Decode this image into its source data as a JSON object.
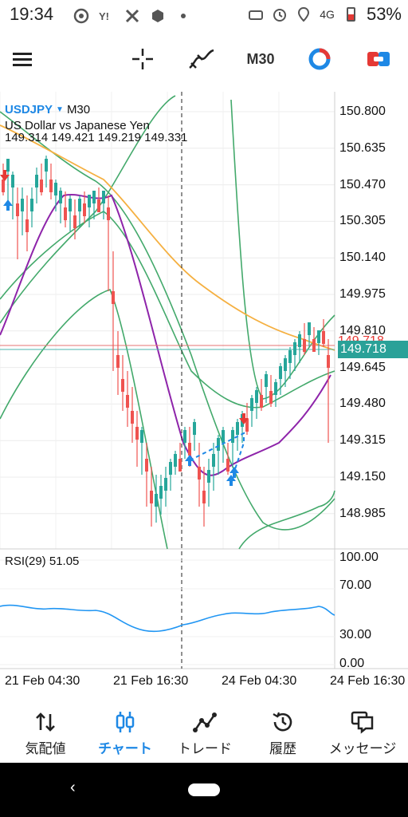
{
  "status_bar": {
    "time": "19:34",
    "network": "4G",
    "battery": "53%",
    "left_icons": [
      "chrome-icon",
      "yahoo-icon",
      "tools-icon",
      "box-icon",
      "dot-icon"
    ],
    "right_icons": [
      "cast-icon",
      "alarm-icon",
      "location-icon",
      "signal-icon",
      "battery-icon"
    ]
  },
  "toolbar": {
    "timeframe": "M30",
    "items": [
      "menu-icon",
      "crosshair-icon",
      "indicators-icon",
      "timeframe",
      "objects-icon",
      "trade-icon"
    ]
  },
  "chart": {
    "symbol": "USDJPY",
    "timeframe": "M30",
    "description": "US Dollar vs Japanese Yen",
    "ohlc": "149.314 149.421 149.219 149.331",
    "bid_label": "149.718",
    "current_price": "149.718",
    "price_axis": [
      "150.800",
      "150.635",
      "150.470",
      "150.305",
      "150.140",
      "149.975",
      "149.810",
      "149.645",
      "149.480",
      "149.315",
      "149.150",
      "148.985"
    ],
    "time_axis": [
      "21 Feb 04:30",
      "21 Feb 16:30",
      "24 Feb 04:30",
      "24 Feb 16:30"
    ],
    "rsi_label": "RSI(29) 51.05",
    "rsi_levels": [
      "100.00",
      "70.00",
      "30.00",
      "0.00"
    ],
    "colors": {
      "bull": "#26a69a",
      "bear": "#ef5350",
      "ma_orange": "#f5b041",
      "ma_purple": "#8e24aa",
      "bands": "#43a96b",
      "rsi": "#2196f3",
      "current_price_bg": "#2aa198"
    }
  },
  "bottom_nav": {
    "items": [
      {
        "label": "気配値",
        "icon": "quotes-icon",
        "active": false
      },
      {
        "label": "チャート",
        "icon": "chart-icon",
        "active": true
      },
      {
        "label": "トレード",
        "icon": "trade-line-icon",
        "active": false
      },
      {
        "label": "履歴",
        "icon": "history-icon",
        "active": false
      },
      {
        "label": "メッセージ",
        "icon": "messages-icon",
        "active": false
      }
    ]
  }
}
